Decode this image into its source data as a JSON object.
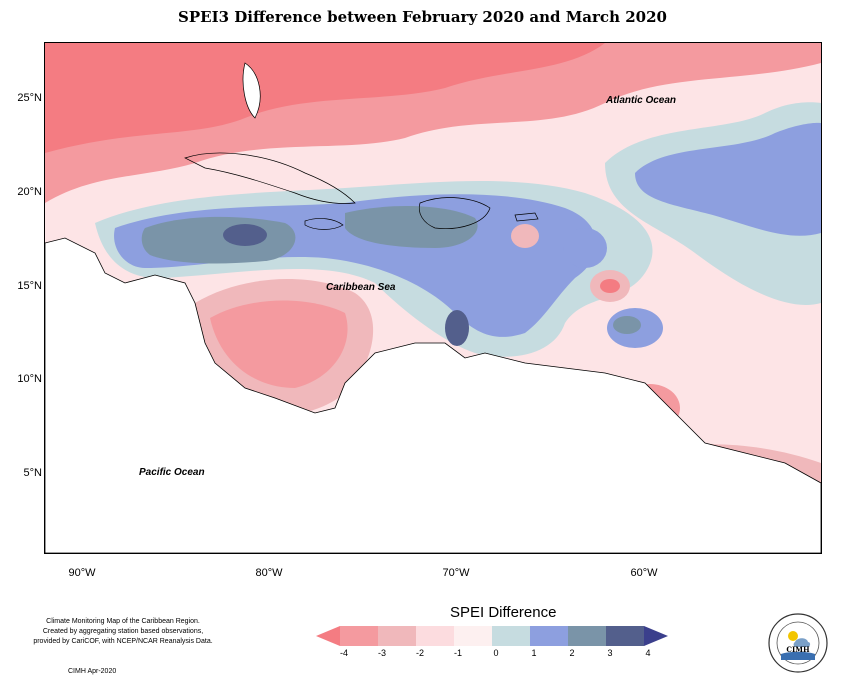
{
  "title": "SPEI3 Difference between February 2020 and March 2020",
  "y_axis": [
    "25°N",
    "20°N",
    "15°N",
    "10°N",
    "5°N"
  ],
  "x_axis": [
    "90°W",
    "80°W",
    "70°W",
    "60°W"
  ],
  "ocean_labels": {
    "atlantic": "Atlantic Ocean",
    "caribbean": "Caribbean Sea",
    "pacific": "Pacific Ocean"
  },
  "legend": {
    "title": "SPEI Difference",
    "ticks": [
      "-4",
      "-3",
      "-2",
      "-1",
      "0",
      "1",
      "2",
      "3",
      "4"
    ],
    "colors": [
      "#f47c82",
      "#f49a9f",
      "#f0b8bb",
      "#fcdcdf",
      "#fdf0f0",
      "#c6dce0",
      "#8d9fdf",
      "#7a94a8",
      "#535f8c",
      "#3b3f8c"
    ]
  },
  "credit": {
    "line1": "Climate Monitoring Map of the Caribbean Region.",
    "line2": "Created by aggregating station based observations,",
    "line3": "provided by CariCOF, with NCEP/NCAR Reanalysis Data.",
    "date": "CIMH Apr-2020"
  },
  "logo": {
    "text": "CIMH"
  }
}
